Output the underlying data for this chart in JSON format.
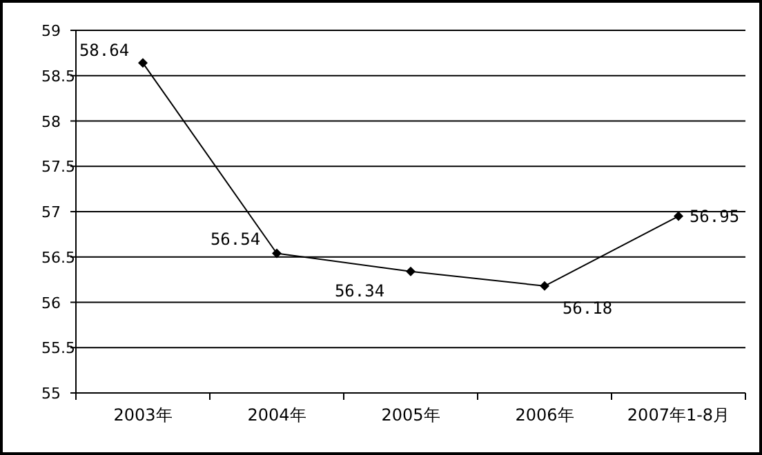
{
  "chart_data": {
    "type": "line",
    "categories": [
      "2003年",
      "2004年",
      "2005年",
      "2006年",
      "2007年1-8月"
    ],
    "values": [
      58.64,
      56.54,
      56.34,
      56.18,
      56.95
    ],
    "color": "#000000",
    "marker": "diamond",
    "line_style": "solid",
    "data_labels": true,
    "ylim": [
      55,
      59
    ],
    "yticks": [
      55,
      55.5,
      56,
      56.5,
      57,
      57.5,
      58,
      58.5,
      59
    ],
    "grid": "y"
  }
}
